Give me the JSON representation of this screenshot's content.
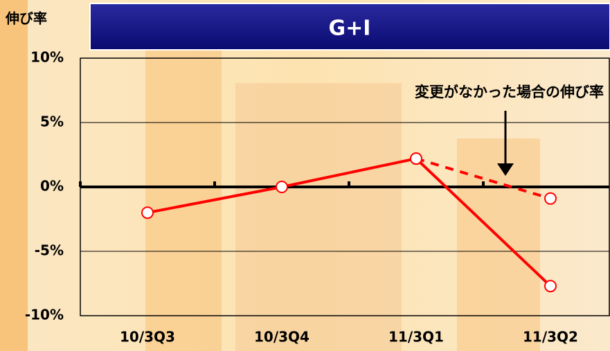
{
  "chart_data": {
    "type": "line",
    "title": "G+I",
    "y_label": "伸び率",
    "annotation": "変更がなかった場合の伸び率",
    "categories": [
      "10/3Q3",
      "10/3Q4",
      "11/3Q1",
      "11/3Q2"
    ],
    "series": [
      {
        "name": "G+I",
        "color": "#ff0000",
        "dashed": false,
        "values": [
          -2,
          0,
          2.2,
          -7.7
        ]
      },
      {
        "name": "変更がなかった場合の伸び率",
        "color": "#ff0000",
        "dashed": true,
        "values": [
          null,
          null,
          2.2,
          -0.9
        ]
      }
    ],
    "ylim": [
      -10,
      10
    ],
    "yticks": [
      {
        "value": -10,
        "label": "-10%"
      },
      {
        "value": -5,
        "label": "-5%"
      },
      {
        "value": 0,
        "label": "0%"
      },
      {
        "value": 5,
        "label": "5%"
      },
      {
        "value": 10,
        "label": "10%"
      }
    ],
    "grid": true
  }
}
